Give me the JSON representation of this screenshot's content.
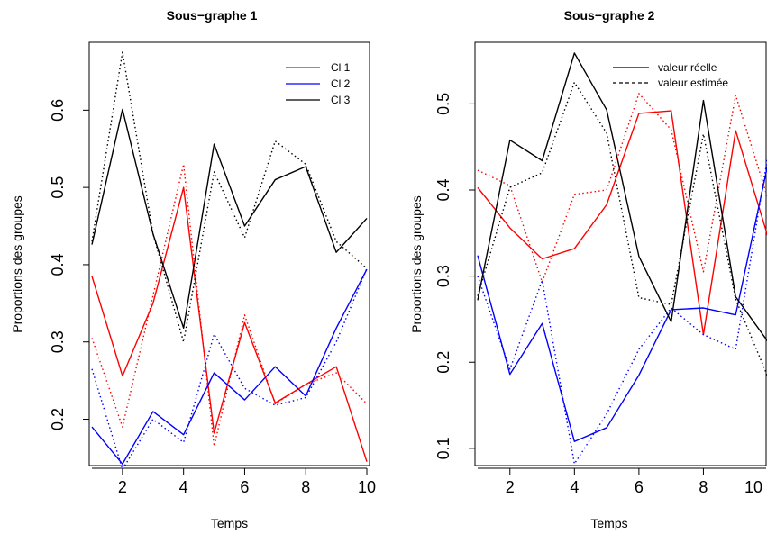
{
  "chart_data": [
    {
      "type": "line",
      "title": "Sous−graphe 1",
      "xlabel": "Temps",
      "ylabel": "Proportions des groupes",
      "xlim": [
        1,
        10
      ],
      "ylim": [
        0.14,
        0.675
      ],
      "xticks": [
        2,
        4,
        6,
        8,
        10
      ],
      "xtick_labels": [
        "2",
        "4",
        "6",
        "8",
        "10"
      ],
      "yticks": [
        0.2,
        0.3,
        0.4,
        0.5,
        0.6
      ],
      "ytick_labels": [
        "0.2",
        "0.3",
        "0.4",
        "0.5",
        "0.6"
      ],
      "grid": false,
      "legend": {
        "position": "top-right",
        "entries": [
          {
            "label": "Cl 1",
            "color": "#ff0000",
            "dash": "solid"
          },
          {
            "label": "Cl 2",
            "color": "#0000ff",
            "dash": "solid"
          },
          {
            "label": "Cl 3",
            "color": "#000000",
            "dash": "solid"
          }
        ]
      },
      "x": [
        1,
        2,
        3,
        4,
        5,
        6,
        7,
        8,
        9,
        10
      ],
      "series": [
        {
          "name": "Cl 1",
          "color": "#ff0000",
          "dash": "solid",
          "values": [
            0.385,
            0.256,
            0.35,
            0.5,
            0.182,
            0.325,
            0.221,
            0.245,
            0.268,
            0.145
          ]
        },
        {
          "name": "Cl 2",
          "color": "#0000ff",
          "dash": "solid",
          "values": [
            0.19,
            0.142,
            0.21,
            0.18,
            0.26,
            0.225,
            0.268,
            0.23,
            0.318,
            0.394
          ]
        },
        {
          "name": "Cl 3",
          "color": "#000000",
          "dash": "solid",
          "values": [
            0.426,
            0.601,
            0.44,
            0.318,
            0.556,
            0.45,
            0.51,
            0.527,
            0.416,
            0.46
          ]
        },
        {
          "color": "#ff0000",
          "dash": "dotted",
          "values": [
            0.305,
            0.19,
            0.36,
            0.53,
            0.165,
            0.335,
            0.22,
            0.245,
            0.26,
            0.22
          ]
        },
        {
          "color": "#0000ff",
          "dash": "dotted",
          "values": [
            0.265,
            0.135,
            0.2,
            0.17,
            0.31,
            0.24,
            0.218,
            0.228,
            0.3,
            0.395
          ]
        },
        {
          "color": "#000000",
          "dash": "dotted",
          "values": [
            0.43,
            0.675,
            0.44,
            0.3,
            0.52,
            0.435,
            0.56,
            0.53,
            0.43,
            0.395
          ]
        }
      ]
    },
    {
      "type": "line",
      "title": "Sous−graphe 2",
      "xlabel": "Temps",
      "ylabel": "Proportions des groupes",
      "xlim": [
        1,
        10
      ],
      "ylim": [
        0.08,
        0.56
      ],
      "xticks": [
        2,
        4,
        6,
        8,
        10
      ],
      "xtick_labels": [
        "2",
        "4",
        "6",
        "8",
        "10"
      ],
      "yticks": [
        0.1,
        0.2,
        0.3,
        0.4,
        0.5
      ],
      "ytick_labels": [
        "0.1",
        "0.2",
        "0.3",
        "0.4",
        "0.5"
      ],
      "grid": false,
      "legend": {
        "position": "top-right",
        "entries": [
          {
            "label": "valeur réelle",
            "color": "#000000",
            "dash": "solid"
          },
          {
            "label": "valeur estimée",
            "color": "#000000",
            "dash": "dashed"
          }
        ]
      },
      "x": [
        1,
        2,
        3,
        4,
        5,
        6,
        7,
        8,
        9,
        10
      ],
      "series": [
        {
          "color": "#ff0000",
          "dash": "solid",
          "values": [
            0.403,
            0.356,
            0.32,
            0.332,
            0.383,
            0.489,
            0.492,
            0.232,
            0.469,
            0.346
          ]
        },
        {
          "color": "#0000ff",
          "dash": "solid",
          "values": [
            0.324,
            0.186,
            0.245,
            0.108,
            0.124,
            0.185,
            0.261,
            0.263,
            0.255,
            0.43
          ]
        },
        {
          "color": "#000000",
          "dash": "solid",
          "values": [
            0.272,
            0.458,
            0.434,
            0.559,
            0.493,
            0.323,
            0.247,
            0.504,
            0.276,
            0.224
          ]
        },
        {
          "color": "#ff0000",
          "dash": "dotted",
          "values": [
            0.423,
            0.405,
            0.293,
            0.395,
            0.4,
            0.512,
            0.47,
            0.305,
            0.51,
            0.39
          ]
        },
        {
          "color": "#0000ff",
          "dash": "dotted",
          "values": [
            0.3,
            0.192,
            0.295,
            0.082,
            0.14,
            0.215,
            0.263,
            0.232,
            0.215,
            0.44
          ]
        },
        {
          "color": "#000000",
          "dash": "dotted",
          "values": [
            0.277,
            0.403,
            0.42,
            0.525,
            0.466,
            0.275,
            0.267,
            0.465,
            0.273,
            0.183
          ]
        }
      ]
    }
  ]
}
